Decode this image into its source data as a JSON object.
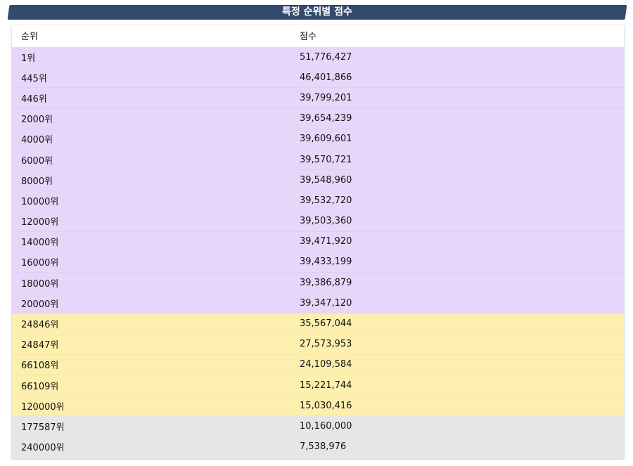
{
  "title": "특정 순위별 점수",
  "header": {
    "rank": "순위",
    "score": "점수"
  },
  "rows": [
    {
      "rank": "1위",
      "score": "51,776,427",
      "tier": "purple"
    },
    {
      "rank": "445위",
      "score": "46,401,866",
      "tier": "purple"
    },
    {
      "rank": "446위",
      "score": "39,799,201",
      "tier": "purple"
    },
    {
      "rank": "2000위",
      "score": "39,654,239",
      "tier": "purple"
    },
    {
      "rank": "4000위",
      "score": "39,609,601",
      "tier": "purple"
    },
    {
      "rank": "6000위",
      "score": "39,570,721",
      "tier": "purple"
    },
    {
      "rank": "8000위",
      "score": "39,548,960",
      "tier": "purple"
    },
    {
      "rank": "10000위",
      "score": "39,532,720",
      "tier": "purple"
    },
    {
      "rank": "12000위",
      "score": "39,503,360",
      "tier": "purple"
    },
    {
      "rank": "14000위",
      "score": "39,471,920",
      "tier": "purple"
    },
    {
      "rank": "16000위",
      "score": "39,433,199",
      "tier": "purple"
    },
    {
      "rank": "18000위",
      "score": "39,386,879",
      "tier": "purple"
    },
    {
      "rank": "20000위",
      "score": "39,347,120",
      "tier": "purple"
    },
    {
      "rank": "24846위",
      "score": "35,567,044",
      "tier": "yellow"
    },
    {
      "rank": "24847위",
      "score": "27,573,953",
      "tier": "yellow"
    },
    {
      "rank": "66108위",
      "score": "24,109,584",
      "tier": "yellow"
    },
    {
      "rank": "66109위",
      "score": "15,221,744",
      "tier": "yellow"
    },
    {
      "rank": "120000위",
      "score": "15,030,416",
      "tier": "yellow"
    },
    {
      "rank": "177587위",
      "score": "10,160,000",
      "tier": "gray"
    },
    {
      "rank": "240000위",
      "score": "7,538,976",
      "tier": "gray"
    }
  ],
  "colors": {
    "title_bg": "#324a6e",
    "purple": "#e8d6fa",
    "yellow": "#fdf0ae",
    "gray": "#e6e6e6"
  }
}
